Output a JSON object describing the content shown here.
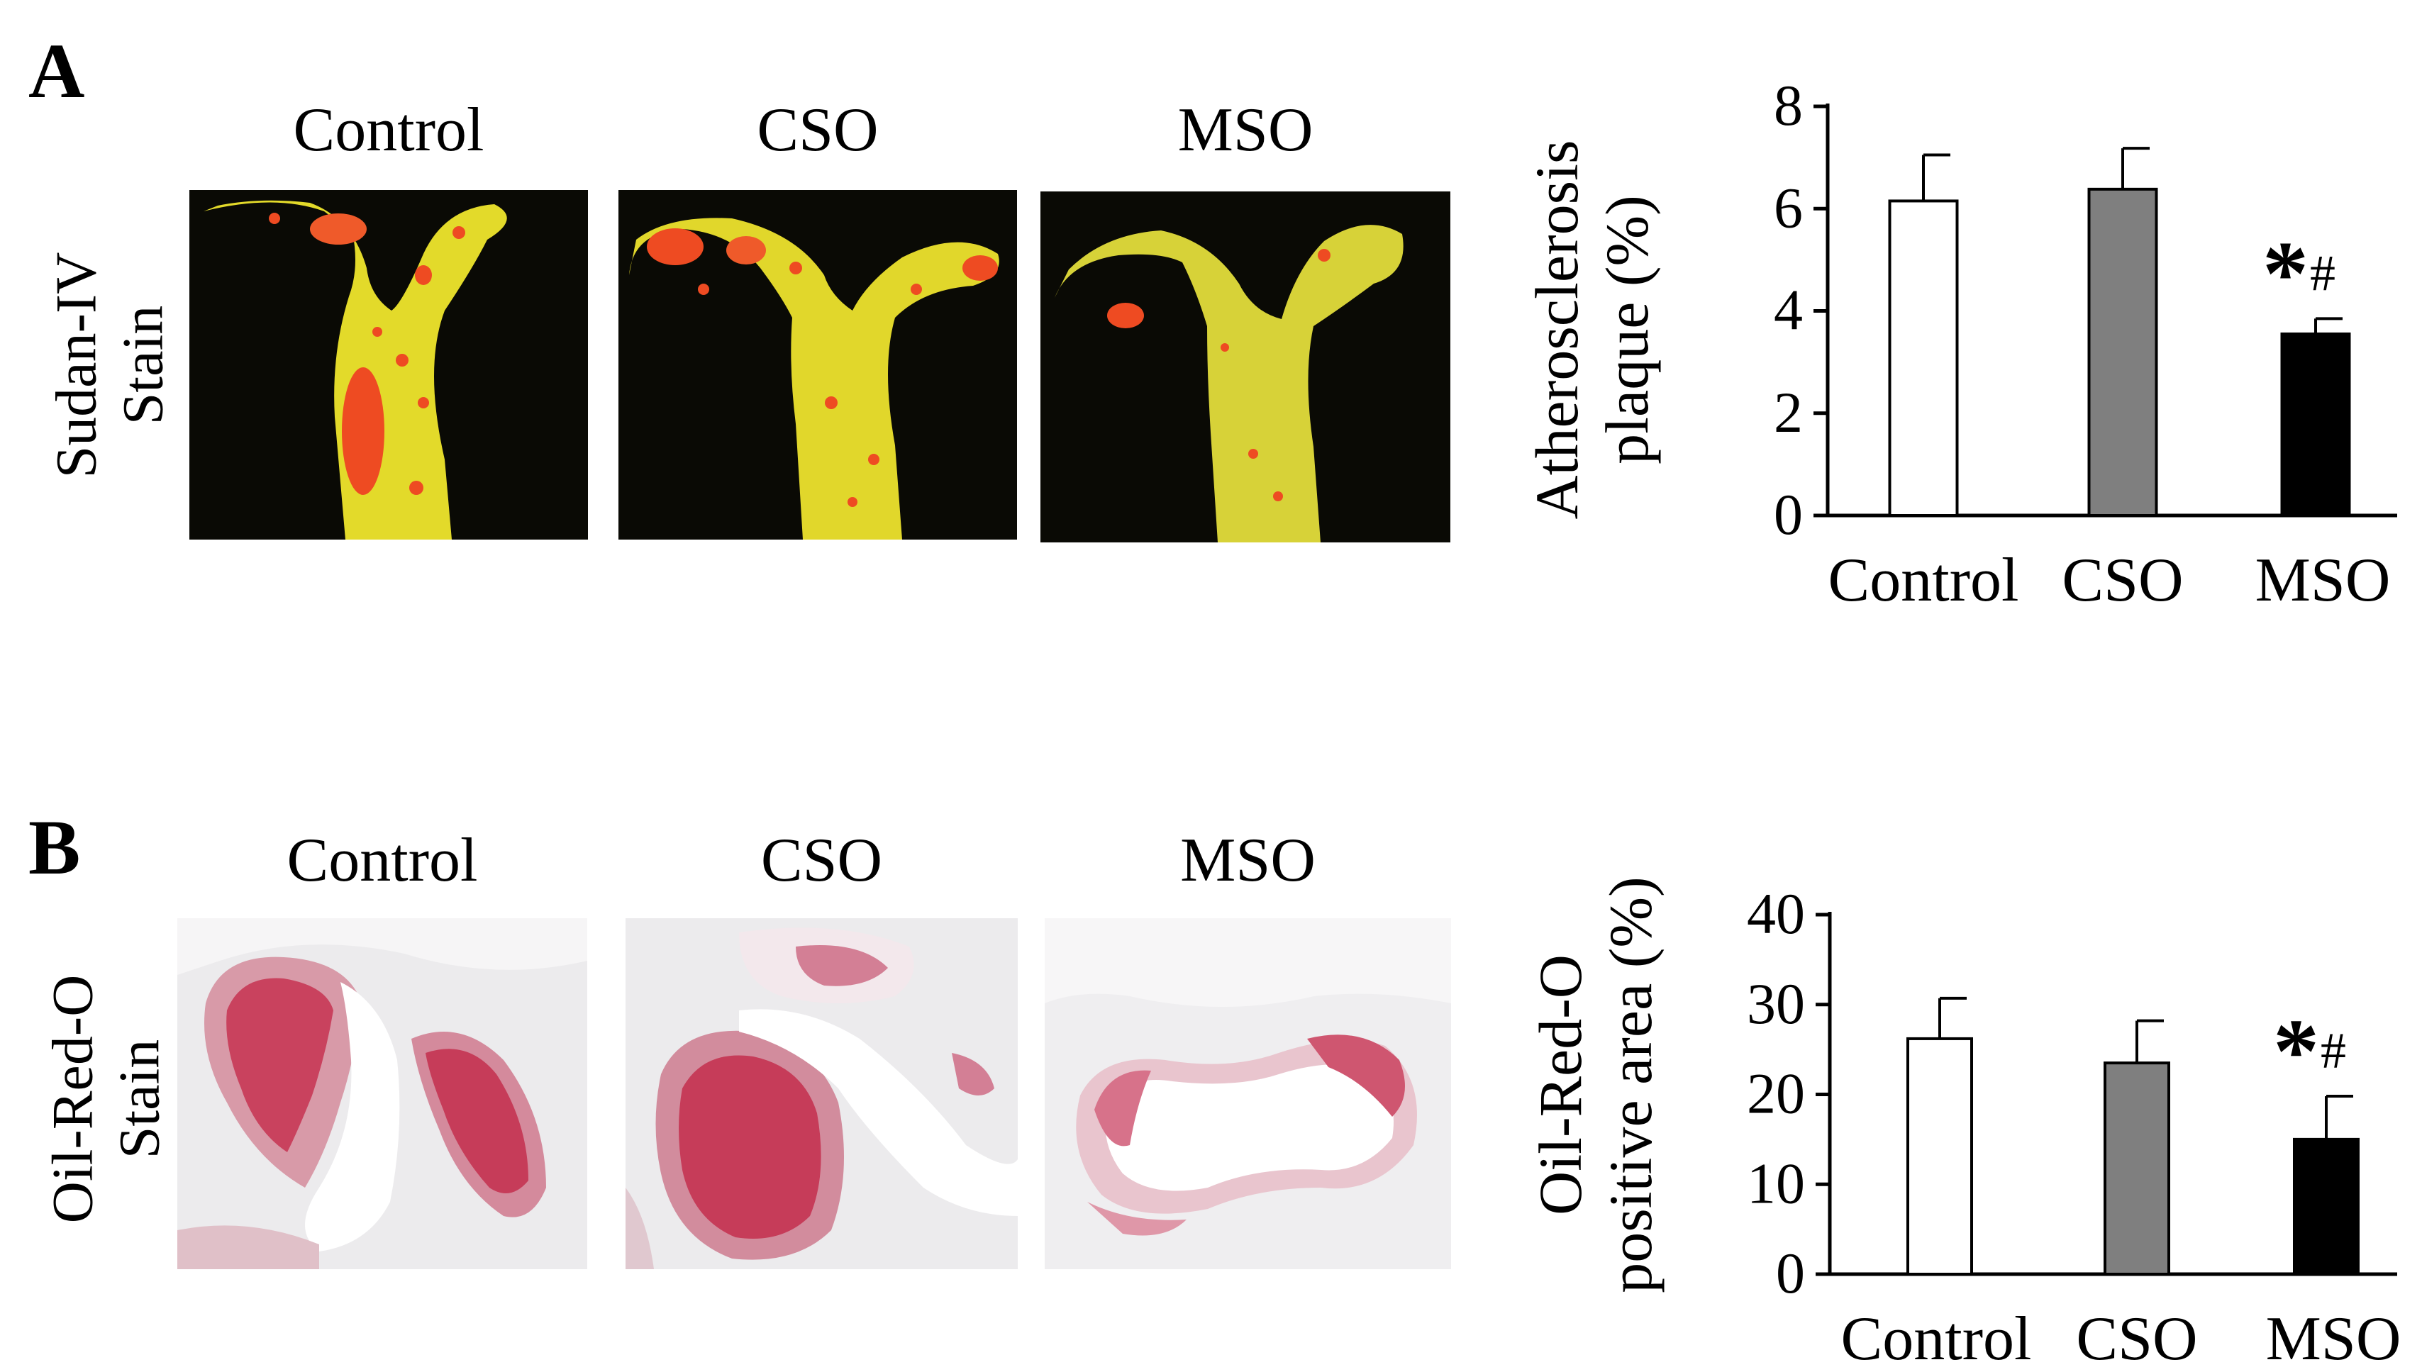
{
  "figure": {
    "panels": [
      {
        "letter": "A",
        "row_label_lines": [
          "Sudan-IV",
          "Stain"
        ],
        "column_labels": [
          "Control",
          "CSO",
          "MSO"
        ],
        "chart": {
          "ylabel_lines": [
            "Atherosclerosis",
            "plaque (%)"
          ],
          "significance": {
            "star": "*",
            "hash": "#"
          }
        }
      },
      {
        "letter": "B",
        "row_label_lines": [
          "Oil-Red-O",
          "Stain"
        ],
        "column_labels": [
          "Control",
          "CSO",
          "MSO"
        ],
        "chart": {
          "ylabel_lines": [
            "Oil-Red-O",
            "positive area (%)"
          ],
          "significance": {
            "star": "*",
            "hash": "#"
          }
        }
      }
    ]
  },
  "chart_data": [
    {
      "type": "bar",
      "categories": [
        "Control",
        "CSO",
        "MSO"
      ],
      "values": [
        6.15,
        6.38,
        3.55
      ],
      "errors": [
        0.9,
        0.8,
        0.3
      ],
      "ylabel": "Atherosclerosis plaque (%)",
      "ylim": [
        0,
        8
      ],
      "yticks": [
        0,
        2,
        4,
        6,
        8
      ],
      "bar_colors": [
        "#ffffff",
        "#7f7f7f",
        "#000000"
      ],
      "grid": false,
      "annotations": [
        {
          "category": "MSO",
          "text": "*#"
        }
      ]
    },
    {
      "type": "bar",
      "categories": [
        "Control",
        "CSO",
        "MSO"
      ],
      "values": [
        26.2,
        23.5,
        15.0
      ],
      "errors": [
        4.5,
        4.7,
        4.8
      ],
      "ylabel": "Oil-Red-O positive area (%)",
      "ylim": [
        0,
        40
      ],
      "yticks": [
        0,
        10,
        20,
        30,
        40
      ],
      "bar_colors": [
        "#ffffff",
        "#7f7f7f",
        "#000000"
      ],
      "grid": false,
      "annotations": [
        {
          "category": "MSO",
          "text": "*#"
        }
      ]
    }
  ]
}
